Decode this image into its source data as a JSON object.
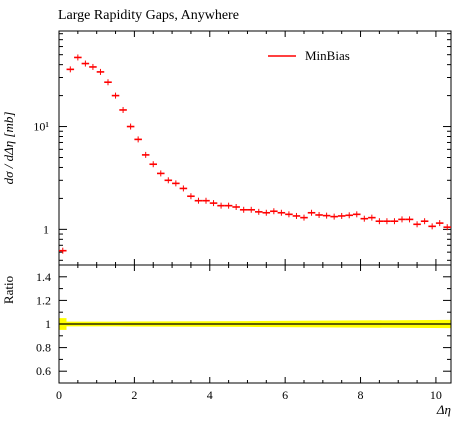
{
  "chart_data": {
    "type": "scatter",
    "title": "Large Rapidity Gaps, Anywhere",
    "main_panel": {
      "ylabel": "dσ / dΔη [mb]",
      "yscale": "log",
      "ylim": [
        0.45,
        85
      ],
      "y_ticks": [
        {
          "value": 1,
          "label": "1"
        },
        {
          "value": 10,
          "label": "10¹"
        }
      ],
      "legend": {
        "position": "top-right",
        "entries": [
          "MinBias"
        ]
      },
      "series": [
        {
          "name": "MinBias",
          "color": "#ff0000",
          "bin_width": 0.2,
          "x": [
            0.0,
            0.2,
            0.4,
            0.6,
            0.8,
            1.0,
            1.2,
            1.4,
            1.6,
            1.8,
            2.0,
            2.2,
            2.4,
            2.6,
            2.8,
            3.0,
            3.2,
            3.4,
            3.6,
            3.8,
            4.0,
            4.2,
            4.4,
            4.6,
            4.8,
            5.0,
            5.2,
            5.4,
            5.6,
            5.8,
            6.0,
            6.2,
            6.4,
            6.6,
            6.8,
            7.0,
            7.2,
            7.4,
            7.6,
            7.8,
            8.0,
            8.2,
            8.4,
            8.6,
            8.8,
            9.0,
            9.2,
            9.4,
            9.6,
            9.8,
            10.0,
            10.2
          ],
          "values": [
            0.62,
            36,
            47,
            41,
            38,
            34,
            27,
            20,
            14.5,
            10,
            7.5,
            5.3,
            4.3,
            3.5,
            3.0,
            2.8,
            2.5,
            2.1,
            1.9,
            1.9,
            1.8,
            1.7,
            1.7,
            1.65,
            1.55,
            1.55,
            1.48,
            1.45,
            1.5,
            1.45,
            1.4,
            1.35,
            1.3,
            1.45,
            1.38,
            1.36,
            1.33,
            1.35,
            1.37,
            1.4,
            1.27,
            1.3,
            1.2,
            1.2,
            1.2,
            1.25,
            1.25,
            1.12,
            1.2,
            1.07,
            1.15,
            1.05
          ]
        }
      ]
    },
    "ratio_panel": {
      "ylabel": "Ratio",
      "ylim": [
        0.5,
        1.5
      ],
      "y_ticks": [
        {
          "value": 0.6,
          "label": "0.6"
        },
        {
          "value": 0.8,
          "label": "0.8"
        },
        {
          "value": 1.0,
          "label": "1"
        },
        {
          "value": 1.2,
          "label": "1.2"
        },
        {
          "value": 1.4,
          "label": "1.4"
        }
      ],
      "line_value": 1.0,
      "band_color": "#ffff00",
      "band_halfwidth": [
        0.05,
        0.02,
        0.025,
        0.035
      ]
    },
    "xlabel": "Δη",
    "xlim": [
      0,
      10.4
    ],
    "x_ticks": [
      {
        "value": 0,
        "label": "0"
      },
      {
        "value": 2,
        "label": "2"
      },
      {
        "value": 4,
        "label": "4"
      },
      {
        "value": 6,
        "label": "6"
      },
      {
        "value": 8,
        "label": "8"
      },
      {
        "value": 10,
        "label": "10"
      }
    ]
  }
}
